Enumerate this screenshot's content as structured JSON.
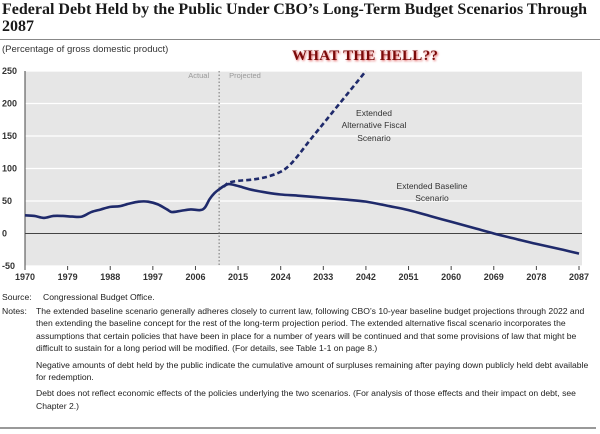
{
  "title": "Federal Debt Held by the Public Under CBO’s Long-Term Budget Scenarios Through 2087",
  "subtitle": "(Percentage of gross domestic product)",
  "annotation": "WHAT THE HELL??",
  "source_label": "Source:",
  "source_text": "Congressional Budget Office.",
  "notes_label": "Notes:",
  "notes": [
    "The extended baseline scenario generally adheres closely to current law, following CBO’s 10-year baseline budget projections through 2022 and then extending the baseline concept for the rest of the long-term projection period. The extended alternative fiscal scenario incorporates the assumptions that certain policies that have been in place for a number of years will be continued and that some provisions of law that might be difficult to sustain for a long period will be modified. (For details, see Table 1-1 on page 8.)",
    "Negative amounts of debt held by the public indicate the cumulative amount of surpluses remaining after paying down publicly held debt available for redemption.",
    "Debt does not reflect economic effects of the policies underlying the two scenarios. (For analysis of those effects and their impact on debt, see Chapter 2.)"
  ],
  "chart_data": {
    "type": "line",
    "xlim": [
      1970,
      2087
    ],
    "ylim": [
      -50,
      250
    ],
    "x_ticks": [
      "1970",
      "1979",
      "1988",
      "1997",
      "2006",
      "2015",
      "2024",
      "2033",
      "2042",
      "2051",
      "2060",
      "2069",
      "2078",
      "2087"
    ],
    "y_ticks": [
      "250",
      "200",
      "150",
      "100",
      "50",
      "0",
      "-50"
    ],
    "grid": true,
    "divider_year": 2011,
    "divider_labels": {
      "left": "Actual",
      "right": "Projected"
    },
    "colors": {
      "series": "#1f2a6b",
      "background": "#e6e6e6"
    },
    "series": [
      {
        "name": "Extended Baseline Scenario",
        "label_lines": [
          "Extended Baseline",
          "Scenario"
        ],
        "style": "solid",
        "x": [
          1970,
          1972,
          1974,
          1976,
          1978,
          1980,
          1982,
          1984,
          1986,
          1988,
          1990,
          1992,
          1994,
          1996,
          1998,
          2000,
          2001,
          2003,
          2005,
          2007,
          2008,
          2009,
          2010,
          2011,
          2012,
          2013,
          2014,
          2016,
          2018,
          2021,
          2024,
          2028,
          2033,
          2038,
          2042,
          2047,
          2051,
          2056,
          2060,
          2065,
          2069,
          2074,
          2078,
          2083,
          2087
        ],
        "y": [
          28,
          27,
          24,
          27,
          27,
          26,
          26,
          33,
          37,
          41,
          42,
          46,
          49,
          49,
          45,
          37,
          33,
          35,
          37,
          36,
          40,
          53,
          62,
          68,
          73,
          76,
          75,
          71,
          67,
          63,
          60,
          58,
          55,
          52,
          49,
          42,
          36,
          26,
          18,
          8,
          0,
          -9,
          -16,
          -24,
          -31
        ]
      },
      {
        "name": "Extended Alternative Fiscal Scenario",
        "label_lines": [
          "Extended",
          "Alternative Fiscal",
          "Scenario"
        ],
        "style": "dashed",
        "x": [
          2012,
          2013,
          2015,
          2018,
          2021,
          2024,
          2026,
          2028,
          2030,
          2032,
          2034,
          2036,
          2038,
          2040,
          2042
        ],
        "y": [
          72,
          78,
          81,
          83,
          87,
          95,
          106,
          123,
          142,
          160,
          178,
          196,
          214,
          232,
          250
        ]
      }
    ]
  }
}
